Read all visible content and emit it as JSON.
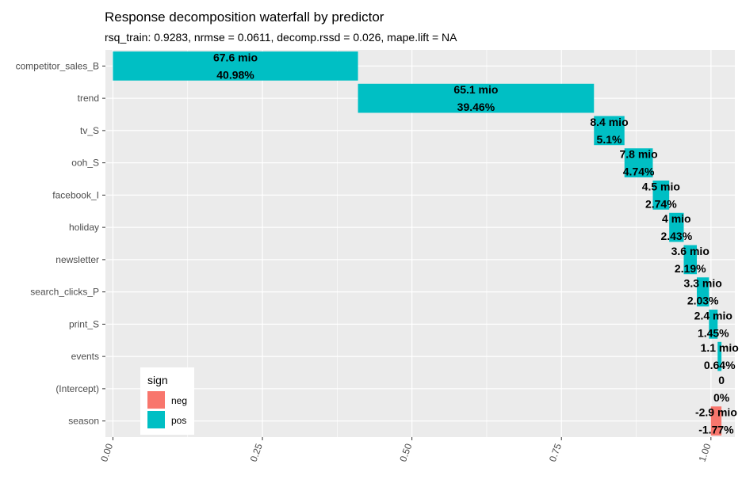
{
  "chart_data": {
    "type": "bar",
    "subtype": "waterfall",
    "orientation": "horizontal",
    "title": "Response decomposition waterfall by predictor",
    "subtitle": "rsq_train: 0.9283, nrmse = 0.0611, decomp.rssd = 0.026, mape.lift = NA",
    "categories": [
      "competitor_sales_B",
      "trend",
      "tv_S",
      "ooh_S",
      "facebook_I",
      "holiday",
      "newsletter",
      "search_clicks_P",
      "print_S",
      "events",
      "(Intercept)",
      "season"
    ],
    "values": [
      67.6,
      65.1,
      8.4,
      7.8,
      4.5,
      4.0,
      3.6,
      3.3,
      2.4,
      1.1,
      0,
      -2.9
    ],
    "value_labels": [
      "67.6 mio",
      "65.1 mio",
      "8.4 mio",
      "7.8 mio",
      "4.5 mio",
      "4 mio",
      "3.6 mio",
      "3.3 mio",
      "2.4 mio",
      "1.1 mio",
      "0",
      "-2.9 mio"
    ],
    "shares": [
      40.98,
      39.46,
      5.1,
      4.74,
      2.74,
      2.43,
      2.19,
      2.03,
      1.45,
      0.64,
      0,
      -1.77
    ],
    "share_labels": [
      "40.98%",
      "39.46%",
      "5.1%",
      "4.74%",
      "2.74%",
      "2.43%",
      "2.19%",
      "2.03%",
      "1.45%",
      "0.64%",
      "0%",
      "-1.77%"
    ],
    "start": [
      0.0,
      0.4098,
      0.8044,
      0.8554,
      0.9028,
      0.9302,
      0.9545,
      0.9764,
      0.9967,
      1.0112,
      1.0176,
      1.0176
    ],
    "end": [
      0.4098,
      0.8044,
      0.8554,
      0.9028,
      0.9302,
      0.9545,
      0.9764,
      0.9967,
      1.0112,
      1.0176,
      1.0176,
      0.9999
    ],
    "sign": [
      "pos",
      "pos",
      "pos",
      "pos",
      "pos",
      "pos",
      "pos",
      "pos",
      "pos",
      "pos",
      "pos",
      "neg"
    ],
    "x_ticks": [
      0.0,
      0.25,
      0.5,
      0.75,
      1.0
    ],
    "x_tick_labels": [
      "0.00",
      "0.25",
      "0.50",
      "0.75",
      "1.00"
    ],
    "xlim": [
      -0.0125,
      1.04
    ],
    "xlabel": "",
    "ylabel": "",
    "grid": true,
    "legend": {
      "title": "sign",
      "placement": "bottom-left",
      "items": [
        {
          "label": "neg",
          "color": "#F8766D"
        },
        {
          "label": "pos",
          "color": "#00BFC4"
        }
      ]
    },
    "colors": {
      "pos": "#00BFC4",
      "neg": "#F8766D",
      "panel": "#EBEBEB",
      "grid": "#FFFFFF"
    }
  }
}
